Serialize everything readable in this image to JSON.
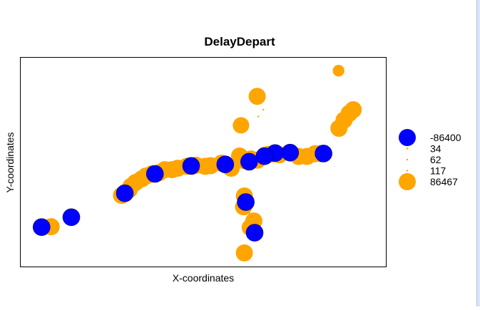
{
  "chart_data": {
    "type": "scatter",
    "title": "DelayDepart",
    "xlabel": "X-coordinates",
    "ylabel": "Y-coordinates",
    "axis_ticks_shown": false,
    "xlim": [
      0,
      100
    ],
    "ylim": [
      0,
      100
    ],
    "legend_position": "right",
    "colors": {
      "negative": "#0000ff",
      "positive": "#ffa500",
      "edge": "#000080"
    },
    "legend": [
      {
        "label": "-86400",
        "value": -86400,
        "color": "#0000ff"
      },
      {
        "label": "34",
        "value": 34,
        "color": "#ffa500"
      },
      {
        "label": "62",
        "value": 62,
        "color": "#ffa500"
      },
      {
        "label": "117",
        "value": 117,
        "color": "#ffa500"
      },
      {
        "label": "86467",
        "value": 86467,
        "color": "#ffa500"
      }
    ],
    "points": [
      {
        "x": 86.9,
        "y": 93.5,
        "value": 40000
      },
      {
        "x": 64.7,
        "y": 81.3,
        "value": 86467
      },
      {
        "x": 66.4,
        "y": 74.9,
        "value": 117
      },
      {
        "x": 65.0,
        "y": 71.7,
        "value": 62
      },
      {
        "x": 60.3,
        "y": 67.5,
        "value": 80000
      },
      {
        "x": 90.9,
        "y": 74.9,
        "value": 86467
      },
      {
        "x": 89.8,
        "y": 73.2,
        "value": 86467
      },
      {
        "x": 88.4,
        "y": 70.0,
        "value": 86467
      },
      {
        "x": 87.0,
        "y": 66.1,
        "value": 86467
      },
      {
        "x": 91.2,
        "y": 74.9,
        "value": 62
      },
      {
        "x": 88.0,
        "y": 64.4,
        "value": 62
      },
      {
        "x": 86.0,
        "y": 63.0,
        "value": 62
      },
      {
        "x": 59.9,
        "y": 52.9,
        "value": 86467
      },
      {
        "x": 57.6,
        "y": 47.1,
        "value": 86467
      },
      {
        "x": 59.7,
        "y": 46.8,
        "value": 62
      },
      {
        "x": 80.5,
        "y": 54.0,
        "value": 86467
      },
      {
        "x": 82.0,
        "y": 54.0,
        "value": 86467
      },
      {
        "x": 82.8,
        "y": 54.1,
        "value": -86400
      },
      {
        "x": 78.3,
        "y": 52.7,
        "value": 86467
      },
      {
        "x": 76.0,
        "y": 52.7,
        "value": 86467
      },
      {
        "x": 74.2,
        "y": 53.2,
        "value": 62
      },
      {
        "x": 73.7,
        "y": 54.5,
        "value": -86400
      },
      {
        "x": 70.8,
        "y": 53.5,
        "value": 86467
      },
      {
        "x": 69.6,
        "y": 54.3,
        "value": 86467
      },
      {
        "x": 69.6,
        "y": 54.3,
        "value": -86400
      },
      {
        "x": 67.6,
        "y": 53.6,
        "value": 86467
      },
      {
        "x": 66.8,
        "y": 53.3,
        "value": 86467
      },
      {
        "x": 68.9,
        "y": 53.9,
        "value": 86467
      },
      {
        "x": 66.7,
        "y": 52.8,
        "value": -86400
      },
      {
        "x": 64.8,
        "y": 50.9,
        "value": 86467
      },
      {
        "x": 63.0,
        "y": 51.5,
        "value": 86467
      },
      {
        "x": 62.4,
        "y": 50.2,
        "value": 86467
      },
      {
        "x": 62.5,
        "y": 50.2,
        "value": -86400
      },
      {
        "x": 61.2,
        "y": 50.7,
        "value": 86467
      },
      {
        "x": 60.2,
        "y": 51.7,
        "value": 86467
      },
      {
        "x": 59.4,
        "y": 49.5,
        "value": 62
      },
      {
        "x": 56.0,
        "y": 48.9,
        "value": 86467
      },
      {
        "x": 56.0,
        "y": 48.9,
        "value": -86400
      },
      {
        "x": 55.0,
        "y": 49.5,
        "value": 86467
      },
      {
        "x": 52.0,
        "y": 48.3,
        "value": 86467
      },
      {
        "x": 50.5,
        "y": 48.0,
        "value": 86467
      },
      {
        "x": 50.5,
        "y": 48.0,
        "value": 117
      },
      {
        "x": 48.0,
        "y": 48.5,
        "value": 86467
      },
      {
        "x": 46.9,
        "y": 48.0,
        "value": 86467
      },
      {
        "x": 46.7,
        "y": 48.2,
        "value": -86400
      },
      {
        "x": 45.5,
        "y": 48.0,
        "value": 86467
      },
      {
        "x": 43.0,
        "y": 47.1,
        "value": 86467
      },
      {
        "x": 41.5,
        "y": 46.4,
        "value": 86467
      },
      {
        "x": 39.5,
        "y": 46.4,
        "value": 86467
      },
      {
        "x": 38.0,
        "y": 45.0,
        "value": 86467
      },
      {
        "x": 36.8,
        "y": 44.4,
        "value": -86400
      },
      {
        "x": 36.0,
        "y": 44.4,
        "value": 86467
      },
      {
        "x": 34.4,
        "y": 43.4,
        "value": 86467
      },
      {
        "x": 33.2,
        "y": 42.0,
        "value": 86467
      },
      {
        "x": 31.5,
        "y": 40.3,
        "value": 86467
      },
      {
        "x": 30.3,
        "y": 38.5,
        "value": 86467
      },
      {
        "x": 29.8,
        "y": 36.9,
        "value": 86467
      },
      {
        "x": 28.6,
        "y": 35.2,
        "value": -86400
      },
      {
        "x": 27.7,
        "y": 34.2,
        "value": 86467
      },
      {
        "x": 14.0,
        "y": 23.8,
        "value": 86467
      },
      {
        "x": 14.0,
        "y": 23.8,
        "value": -86400
      },
      {
        "x": 14.3,
        "y": 24.1,
        "value": 117
      },
      {
        "x": 8.5,
        "y": 19.3,
        "value": 86467
      },
      {
        "x": 6.0,
        "y": 19.0,
        "value": 86467
      },
      {
        "x": 5.9,
        "y": 19.1,
        "value": -86400
      },
      {
        "x": 60.4,
        "y": 37.0,
        "value": 62
      },
      {
        "x": 61.2,
        "y": 33.9,
        "value": 86467
      },
      {
        "x": 61.6,
        "y": 31.0,
        "value": 86467
      },
      {
        "x": 61.6,
        "y": 31.0,
        "value": -86400
      },
      {
        "x": 61.0,
        "y": 28.7,
        "value": 86467
      },
      {
        "x": 62.6,
        "y": 25.6,
        "value": 62
      },
      {
        "x": 63.8,
        "y": 22.0,
        "value": 86467
      },
      {
        "x": 63.8,
        "y": 20.4,
        "value": 62
      },
      {
        "x": 62.8,
        "y": 18.9,
        "value": 86467
      },
      {
        "x": 64.0,
        "y": 16.4,
        "value": 86467
      },
      {
        "x": 64.0,
        "y": 16.4,
        "value": -86400
      },
      {
        "x": 61.2,
        "y": 6.8,
        "value": 86467
      },
      {
        "x": 61.2,
        "y": 6.8,
        "value": 117
      }
    ]
  }
}
